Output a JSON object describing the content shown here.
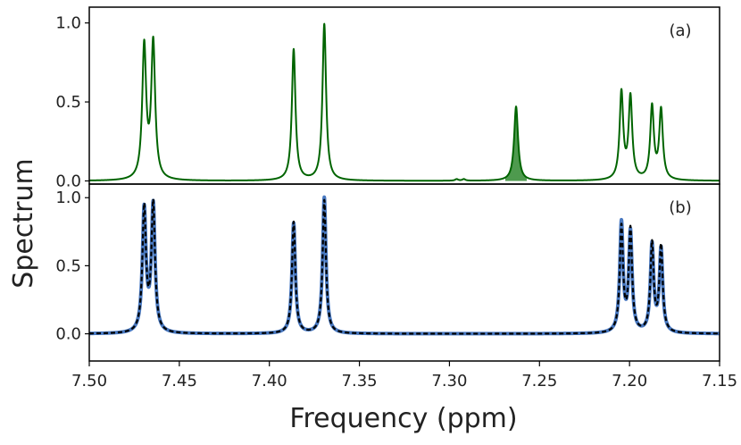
{
  "chart_data": {
    "type": "line",
    "xlabel": "Frequency (ppm)",
    "ylabel": "Spectrum",
    "xlim": [
      7.5,
      7.15
    ],
    "x_ticks": [
      "7.50",
      "7.45",
      "7.40",
      "7.35",
      "7.30",
      "7.25",
      "7.20",
      "7.15"
    ],
    "panels": [
      {
        "label": "(a)",
        "ylim": [
          -0.02,
          1.1
        ],
        "y_ticks": [
          "0.0",
          "0.5",
          "1.0"
        ],
        "series": [
          {
            "color": "#006400",
            "style": "solid",
            "fill_peak": {
              "center": 7.263,
              "height": 0.47,
              "width": 0.0013,
              "fill": "#4e9a4e"
            },
            "peaks": [
              {
                "center": 7.4695,
                "height": 0.84,
                "width": 0.0013
              },
              {
                "center": 7.4645,
                "height": 0.86,
                "width": 0.0013
              },
              {
                "center": 7.3865,
                "height": 0.83,
                "width": 0.0012
              },
              {
                "center": 7.3695,
                "height": 0.99,
                "width": 0.0012
              },
              {
                "center": 7.263,
                "height": 0.47,
                "width": 0.0013
              },
              {
                "center": 7.2045,
                "height": 0.55,
                "width": 0.0012
              },
              {
                "center": 7.1995,
                "height": 0.52,
                "width": 0.0012
              },
              {
                "center": 7.1875,
                "height": 0.46,
                "width": 0.0012
              },
              {
                "center": 7.1825,
                "height": 0.44,
                "width": 0.0012
              },
              {
                "center": 7.296,
                "height": 0.01,
                "width": 0.001
              },
              {
                "center": 7.292,
                "height": 0.01,
                "width": 0.001
              }
            ]
          }
        ]
      },
      {
        "label": "(b)",
        "ylim": [
          -0.2,
          1.1
        ],
        "y_ticks": [
          "0.0",
          "0.5",
          "1.0"
        ],
        "series": [
          {
            "color": "#4878c0",
            "style": "solid",
            "peaks": [
              {
                "center": 7.4695,
                "height": 0.9,
                "width": 0.0012
              },
              {
                "center": 7.4645,
                "height": 0.93,
                "width": 0.0012
              },
              {
                "center": 7.3865,
                "height": 0.81,
                "width": 0.0011
              },
              {
                "center": 7.3695,
                "height": 1.0,
                "width": 0.0011
              },
              {
                "center": 7.2045,
                "height": 0.8,
                "width": 0.0011
              },
              {
                "center": 7.1995,
                "height": 0.73,
                "width": 0.0011
              },
              {
                "center": 7.1875,
                "height": 0.64,
                "width": 0.0011
              },
              {
                "center": 7.1825,
                "height": 0.61,
                "width": 0.0011
              }
            ]
          },
          {
            "color": "#000000",
            "style": "dashed",
            "peaks": [
              {
                "center": 7.4695,
                "height": 0.91,
                "width": 0.0012
              },
              {
                "center": 7.4645,
                "height": 0.94,
                "width": 0.0012
              },
              {
                "center": 7.3865,
                "height": 0.82,
                "width": 0.0011
              },
              {
                "center": 7.3695,
                "height": 0.98,
                "width": 0.0011
              },
              {
                "center": 7.2045,
                "height": 0.77,
                "width": 0.0011
              },
              {
                "center": 7.1995,
                "height": 0.75,
                "width": 0.0011
              },
              {
                "center": 7.1875,
                "height": 0.65,
                "width": 0.0011
              },
              {
                "center": 7.1825,
                "height": 0.63,
                "width": 0.0011
              }
            ]
          }
        ]
      }
    ]
  }
}
